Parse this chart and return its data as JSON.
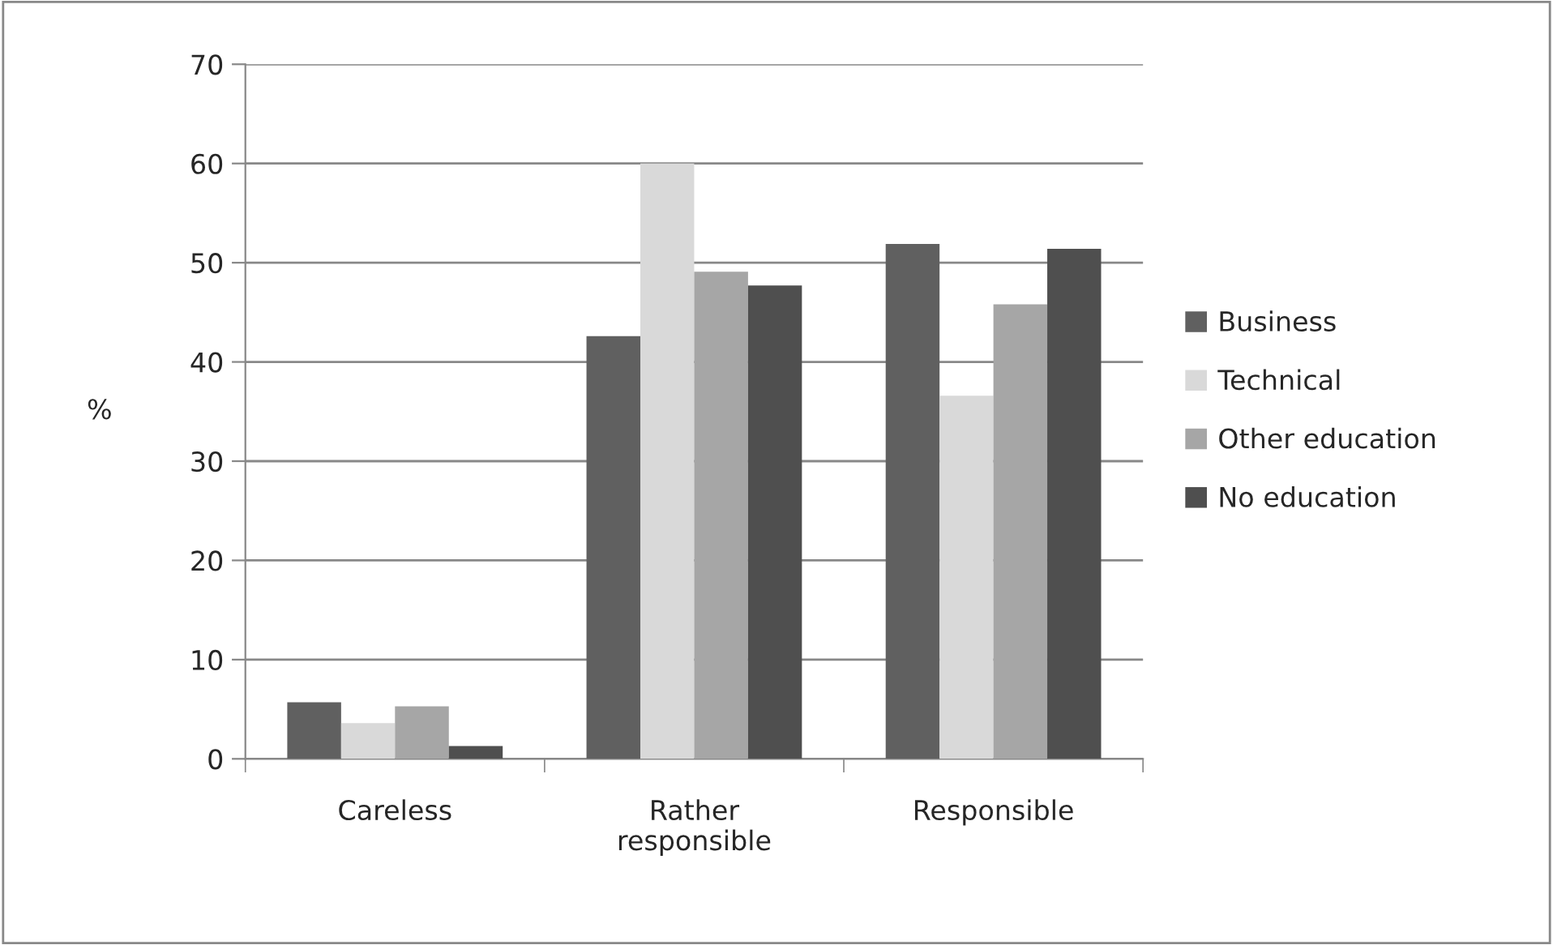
{
  "chart_data": {
    "type": "bar",
    "ylabel": "%",
    "categories": [
      "Careless",
      "Rather\nresponsible",
      "Responsible"
    ],
    "series": [
      {
        "name": "Business",
        "color": "#606060",
        "values": [
          5.7,
          42.6,
          51.9
        ]
      },
      {
        "name": "Technical",
        "color": "#d9d9d9",
        "values": [
          3.6,
          60.0,
          36.6
        ]
      },
      {
        "name": "Other education",
        "color": "#a6a6a6",
        "values": [
          5.3,
          49.1,
          45.8
        ]
      },
      {
        "name": "No education",
        "color": "#4f4f4f",
        "values": [
          1.3,
          47.7,
          51.4
        ]
      }
    ],
    "ylim": [
      0,
      70
    ],
    "yticks": [
      0,
      10,
      20,
      30,
      40,
      50,
      60,
      70
    ],
    "grid": "y",
    "legend": "right"
  }
}
